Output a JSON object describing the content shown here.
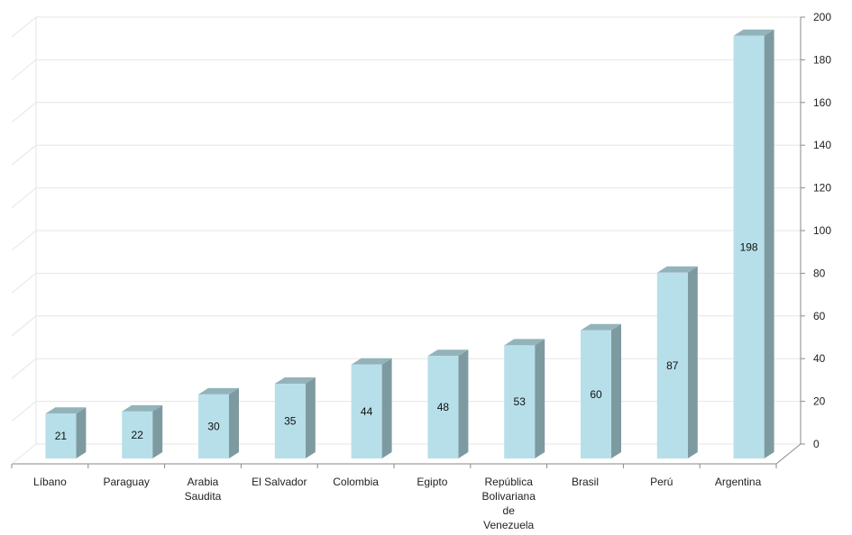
{
  "chart_data": {
    "type": "bar",
    "categories": [
      [
        "Líbano"
      ],
      [
        "Paraguay"
      ],
      [
        "Arabia",
        "Saudita"
      ],
      [
        "El Salvador"
      ],
      [
        "Colombia"
      ],
      [
        "Egipto"
      ],
      [
        "República",
        "Bolivariana",
        "de",
        "Venezuela"
      ],
      [
        "Brasil"
      ],
      [
        "Perú"
      ],
      [
        "Argentina"
      ]
    ],
    "values": [
      21,
      22,
      30,
      35,
      44,
      48,
      53,
      60,
      87,
      198
    ],
    "ylim": [
      0,
      200
    ],
    "yticks": [
      0,
      20,
      40,
      60,
      80,
      100,
      120,
      140,
      160,
      180,
      200
    ],
    "y_axis_side": "right",
    "grid": true,
    "three_d": true,
    "colors": {
      "bar_front": "#b7dfe9",
      "bar_side": "#7e9aa1",
      "bar_top": "#93b3bb",
      "grid": "#e6e6e6",
      "axis": "#8a8a8a"
    }
  }
}
